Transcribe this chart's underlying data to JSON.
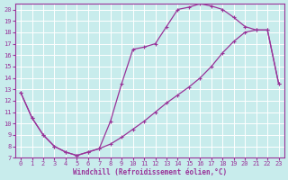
{
  "xlabel": "Windchill (Refroidissement éolien,°C)",
  "bg_color": "#c8ecec",
  "line_color": "#993399",
  "grid_color": "#ffffff",
  "xlim": [
    -0.5,
    23.5
  ],
  "ylim": [
    7,
    20.5
  ],
  "yticks": [
    7,
    8,
    9,
    10,
    11,
    12,
    13,
    14,
    15,
    16,
    17,
    18,
    19,
    20
  ],
  "xticks": [
    0,
    1,
    2,
    3,
    4,
    5,
    6,
    7,
    8,
    9,
    10,
    11,
    12,
    13,
    14,
    15,
    16,
    17,
    18,
    19,
    20,
    21,
    22,
    23
  ],
  "upper_x": [
    0,
    1,
    2,
    3,
    4,
    5,
    6,
    7,
    8,
    9,
    10,
    11,
    12,
    13,
    14,
    15,
    16,
    17,
    18,
    19,
    20,
    21,
    22,
    23
  ],
  "upper_y": [
    12.7,
    10.5,
    9.0,
    8.0,
    7.5,
    7.2,
    7.5,
    7.8,
    10.2,
    13.5,
    16.5,
    16.7,
    17.0,
    18.5,
    20.0,
    20.2,
    20.5,
    20.3,
    20.0,
    19.3,
    18.5,
    18.2,
    18.2,
    13.5
  ],
  "lower_x": [
    0,
    1,
    2,
    3,
    4,
    5,
    6,
    7,
    8,
    9,
    10,
    11,
    12,
    13,
    14,
    15,
    16,
    17,
    18,
    19,
    20,
    21,
    22,
    23
  ],
  "lower_y": [
    12.7,
    10.5,
    9.0,
    8.0,
    7.5,
    7.2,
    7.5,
    7.8,
    8.2,
    8.8,
    9.5,
    10.2,
    11.0,
    11.8,
    12.5,
    13.2,
    14.0,
    15.0,
    16.2,
    17.2,
    18.0,
    18.2,
    18.2,
    13.5
  ]
}
